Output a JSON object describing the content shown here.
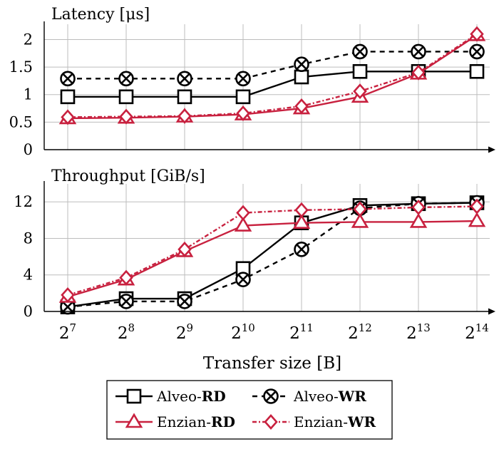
{
  "colors": {
    "alveo": "#000000",
    "enzian": "#c8213f",
    "grid": "#bdbdbd"
  },
  "chart_data": [
    {
      "type": "line",
      "title": "Latency [μs]",
      "x": [
        7,
        8,
        9,
        10,
        11,
        12,
        13,
        14
      ],
      "x_tick_labels": [
        {
          "base": "2",
          "exp": "7"
        },
        {
          "base": "2",
          "exp": "8"
        },
        {
          "base": "2",
          "exp": "9"
        },
        {
          "base": "2",
          "exp": "10"
        },
        {
          "base": "2",
          "exp": "11"
        },
        {
          "base": "2",
          "exp": "12"
        },
        {
          "base": "2",
          "exp": "13"
        },
        {
          "base": "2",
          "exp": "14"
        }
      ],
      "xscale": "log2",
      "ylim": [
        0,
        2.2
      ],
      "yticks": [
        0,
        0.5,
        1,
        1.5,
        2
      ],
      "ytick_labels": [
        "0",
        "0.5",
        "1",
        "1.5",
        "2"
      ],
      "grid": true,
      "series": [
        {
          "name": "Alveo-RD",
          "values": [
            0.96,
            0.96,
            0.96,
            0.96,
            1.32,
            1.42,
            1.42,
            1.42
          ]
        },
        {
          "name": "Alveo-WR",
          "values": [
            1.29,
            1.29,
            1.29,
            1.29,
            1.55,
            1.78,
            1.78,
            1.78
          ]
        },
        {
          "name": "Enzian-RD",
          "values": [
            0.57,
            0.58,
            0.6,
            0.64,
            0.75,
            0.96,
            1.38,
            2.08
          ]
        },
        {
          "name": "Enzian-WR",
          "values": [
            0.59,
            0.6,
            0.61,
            0.66,
            0.79,
            1.06,
            1.4,
            2.1
          ]
        }
      ]
    },
    {
      "type": "line",
      "title": "Throughput [GiB/s]",
      "xlabel": "Transfer size [B]",
      "x": [
        7,
        8,
        9,
        10,
        11,
        12,
        13,
        14
      ],
      "xscale": "log2",
      "ylim": [
        0,
        13.5
      ],
      "yticks": [
        0,
        4,
        8,
        12
      ],
      "ytick_labels": [
        "0",
        "4",
        "8",
        "12"
      ],
      "grid": true,
      "series": [
        {
          "name": "Alveo-RD",
          "values": [
            0.5,
            1.4,
            1.4,
            4.7,
            9.7,
            11.6,
            11.8,
            11.9
          ]
        },
        {
          "name": "Alveo-WR",
          "values": [
            0.5,
            1.1,
            1.1,
            3.5,
            6.8,
            11.3,
            11.8,
            11.9
          ]
        },
        {
          "name": "Enzian-RD",
          "values": [
            1.6,
            3.5,
            6.6,
            9.4,
            9.7,
            9.8,
            9.8,
            9.9
          ]
        },
        {
          "name": "Enzian-WR",
          "values": [
            1.8,
            3.7,
            6.8,
            10.8,
            11.1,
            11.2,
            11.4,
            11.5
          ]
        }
      ]
    }
  ],
  "legend": {
    "position": "bottom-center",
    "items": [
      {
        "prefix": "Alveo-",
        "bold": "RD",
        "marker": "square",
        "dash": "solid",
        "color": "alveo"
      },
      {
        "prefix": "Alveo-",
        "bold": "WR",
        "marker": "circle-x",
        "dash": "dashed",
        "color": "alveo"
      },
      {
        "prefix": "Enzian-",
        "bold": "RD",
        "marker": "triangle",
        "dash": "solid",
        "color": "enzian"
      },
      {
        "prefix": "Enzian-",
        "bold": "WR",
        "marker": "diamond",
        "dash": "dashdot",
        "color": "enzian"
      }
    ]
  }
}
